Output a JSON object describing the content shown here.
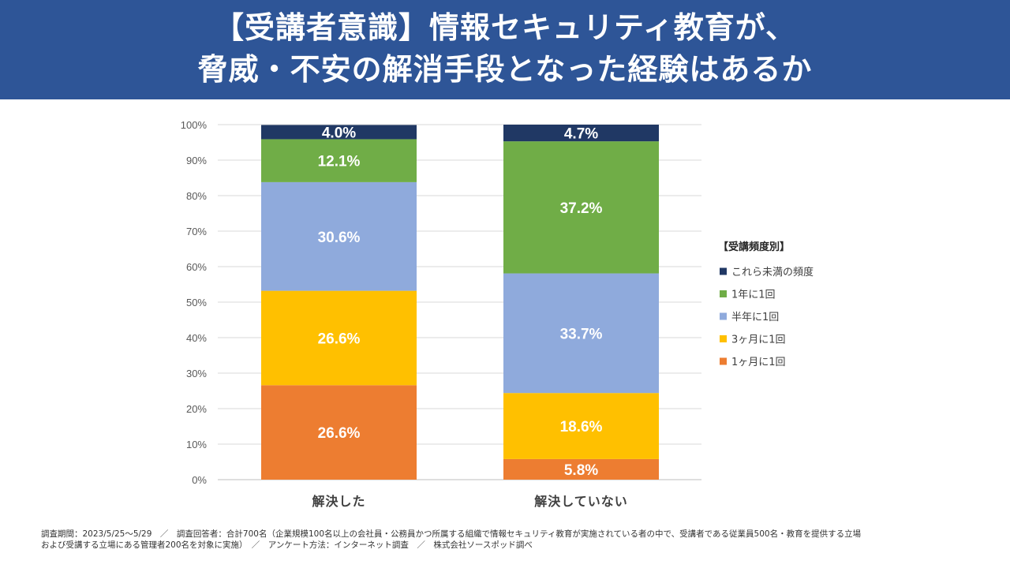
{
  "header": {
    "title_line1": "【受講者意識】情報セキュリティ教育が、",
    "title_line2": "脅威・不安の解消手段となった経験はあるか"
  },
  "chart_data": {
    "type": "bar",
    "stacked": true,
    "categories": [
      "解決した",
      "解決していない"
    ],
    "series": [
      {
        "name": "1ヶ月に1回",
        "color": "#ed7d31",
        "values": [
          26.6,
          5.8
        ]
      },
      {
        "name": "3ヶ月に1回",
        "color": "#ffc000",
        "values": [
          26.6,
          18.6
        ]
      },
      {
        "name": "半年に1回",
        "color": "#8faadc",
        "values": [
          30.6,
          33.7
        ]
      },
      {
        "name": "1年に1回",
        "color": "#70ad47",
        "values": [
          12.1,
          37.2
        ]
      },
      {
        "name": "これら未満の頻度",
        "color": "#203864",
        "values": [
          4.0,
          4.7
        ]
      }
    ],
    "labels": [
      [
        "26.6%",
        "26.6%",
        "30.6%",
        "12.1%",
        "4.0%"
      ],
      [
        "5.8%",
        "18.6%",
        "33.7%",
        "37.2%",
        "4.7%"
      ]
    ],
    "yticks": [
      "0%",
      "10%",
      "20%",
      "30%",
      "40%",
      "50%",
      "60%",
      "70%",
      "80%",
      "90%",
      "100%"
    ],
    "ylim": [
      0,
      100
    ],
    "legend_title": "【受講頻度別】",
    "legend_order": [
      "これら未満の頻度",
      "1年に1回",
      "半年に1回",
      "3ヶ月に1回",
      "1ヶ月に1回"
    ],
    "legend_position": "right"
  },
  "footer": {
    "line1": "調査期間：2023/5/25〜5/29　／　調査回答者：合計700名（企業規模100名以上の会社員・公務員かつ所属する組織で情報セキュリティ教育が実施されている者の中で、受講者である従業員500名・教育を提供する立場",
    "line2": "および受講する立場にある管理者200名を対象に実施）　／　アンケート方法：インターネット調査　／　株式会社ソースポッド調べ"
  }
}
